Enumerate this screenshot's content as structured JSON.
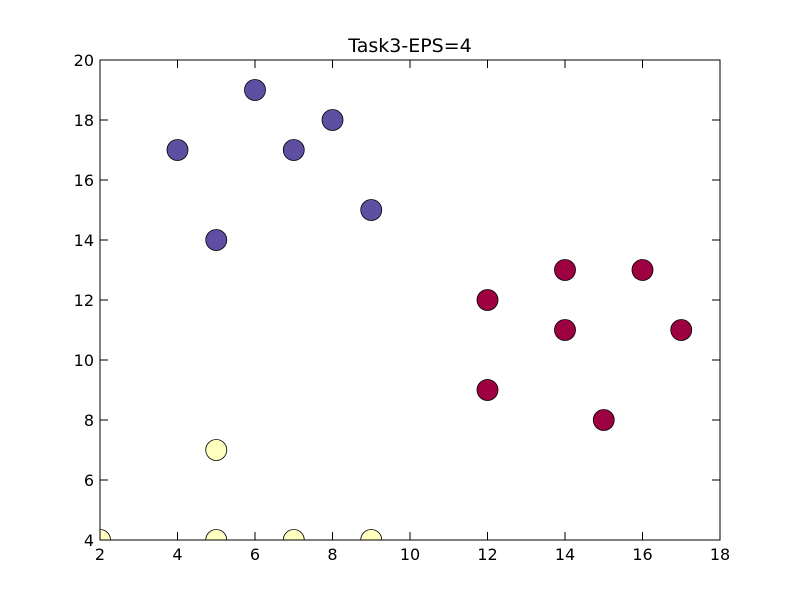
{
  "chart_data": {
    "type": "scatter",
    "title": "Task3-EPS=4",
    "xlabel": "",
    "ylabel": "",
    "xlim": [
      2,
      18
    ],
    "ylim": [
      4,
      20
    ],
    "xticks": [
      2,
      4,
      6,
      8,
      10,
      12,
      14,
      16,
      18
    ],
    "yticks": [
      4,
      6,
      8,
      10,
      12,
      14,
      16,
      18,
      20
    ],
    "grid": false,
    "legend": "none",
    "marker": "circle",
    "series": [
      {
        "color": "#5e4fa2",
        "points": [
          {
            "x": 4,
            "y": 17
          },
          {
            "x": 5,
            "y": 14
          },
          {
            "x": 6,
            "y": 19
          },
          {
            "x": 7,
            "y": 17
          },
          {
            "x": 8,
            "y": 18
          },
          {
            "x": 9,
            "y": 15
          }
        ]
      },
      {
        "color": "#9e0142",
        "points": [
          {
            "x": 12,
            "y": 12
          },
          {
            "x": 12,
            "y": 9
          },
          {
            "x": 14,
            "y": 13
          },
          {
            "x": 14,
            "y": 11
          },
          {
            "x": 15,
            "y": 8
          },
          {
            "x": 16,
            "y": 13
          },
          {
            "x": 17,
            "y": 11
          }
        ]
      },
      {
        "color": "#ffffbf",
        "points": [
          {
            "x": 2,
            "y": 4
          },
          {
            "x": 5,
            "y": 7
          },
          {
            "x": 5,
            "y": 4
          },
          {
            "x": 7,
            "y": 4
          },
          {
            "x": 9,
            "y": 4
          }
        ]
      }
    ]
  }
}
